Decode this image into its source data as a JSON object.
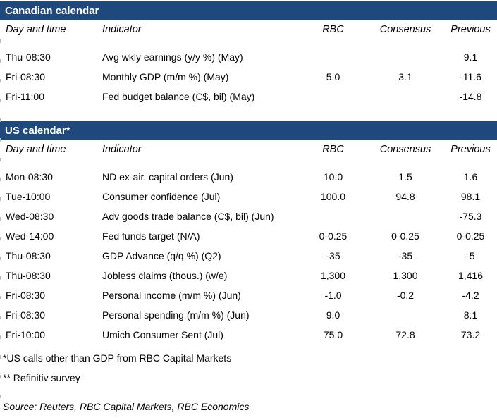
{
  "accent_color": "#1f497d",
  "tables": [
    {
      "title": "Canadian calendar",
      "columns": [
        "Day and time",
        "Indicator",
        "RBC",
        "Consensus",
        "Previous"
      ],
      "rows": [
        [
          "Thu-08:30",
          "Avg wkly earnings (y/y %) (May)",
          "",
          "",
          "9.1"
        ],
        [
          "Fri-08:30",
          "Monthly GDP (m/m %) (May)",
          "5.0",
          "3.1",
          "-11.6"
        ],
        [
          "Fri-11:00",
          "Fed budget balance (C$, bil) (May)",
          "",
          "",
          "-14.8"
        ]
      ]
    },
    {
      "title": "US calendar*",
      "columns": [
        "Day and time",
        "Indicator",
        "RBC",
        "Consensus",
        "Previous"
      ],
      "rows": [
        [
          "Mon-08:30",
          "ND ex-air. capital orders (Jun)",
          "10.0",
          "1.5",
          "1.6"
        ],
        [
          "Tue-10:00",
          "Consumer confidence (Jul)",
          "100.0",
          "94.8",
          "98.1"
        ],
        [
          "Wed-08:30",
          "Adv goods trade balance (C$, bil) (Jun)",
          "",
          "",
          "-75.3"
        ],
        [
          "Wed-14:00",
          "Fed funds target (N/A)",
          "0-0.25",
          "0-0.25",
          "0-0.25"
        ],
        [
          "Thu-08:30",
          "GDP Advance (q/q %) (Q2)",
          "-35",
          "-35",
          "-5"
        ],
        [
          "Thu-08:30",
          "Jobless claims (thous.) (w/e)",
          "1,300",
          "1,300",
          "1,416"
        ],
        [
          "Fri-08:30",
          "Personal income (m/m %) (Jun)",
          "-1.0",
          "-0.2",
          "-4.2"
        ],
        [
          "Fri-08:30",
          "Personal spending (m/m %) (Jun)",
          "9.0",
          "",
          "8.1"
        ],
        [
          "Fri-10:00",
          "Umich Consumer Sent (Jul)",
          "75.0",
          "72.8",
          "73.2"
        ]
      ]
    }
  ],
  "footnotes": [
    "*US calls other than GDP from RBC Capital Markets",
    "** Refinitiv survey"
  ],
  "source": "Source: Reuters, RBC Capital Markets, RBC Economics"
}
